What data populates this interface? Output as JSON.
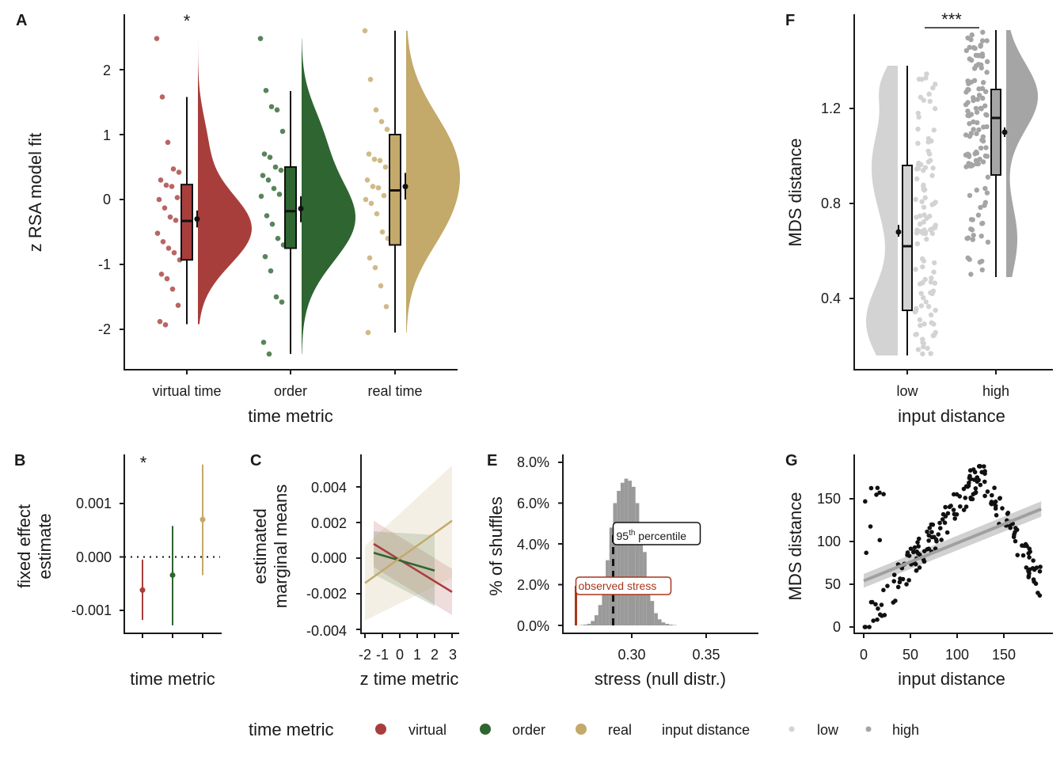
{
  "colors": {
    "virtual": "#a83e3c",
    "order": "#2e6530",
    "real": "#c3a96a",
    "low": "#d3d3d3",
    "high": "#a5a5a5",
    "null": "#9a9a9a",
    "observed": "#a8361c"
  },
  "panels": {
    "A": {
      "label": "A",
      "xlabel": "time metric",
      "ylabel": "z RSA model fit",
      "yticks": [
        "2",
        "1",
        "0",
        "-1",
        "-2"
      ],
      "sig": "*"
    },
    "B": {
      "label": "B",
      "xlabel": "time metric",
      "ylabel_line1": "fixed effect",
      "ylabel_line2": "estimate",
      "yticks": [
        "0.001",
        "0.000",
        "-0.001"
      ],
      "sig": "*"
    },
    "C": {
      "label": "C",
      "xlabel": "z time metric",
      "ylabel_line1": "estimated",
      "ylabel_line2": "marginal means",
      "yticks": [
        "0.004",
        "0.002",
        "0.000",
        "-0.002",
        "-0.004"
      ],
      "xticks": [
        "-2",
        "-1",
        "0",
        "1",
        "2",
        "3"
      ]
    },
    "E": {
      "label": "E",
      "xlabel": "stress (null distr.)",
      "ylabel": "% of shuffles",
      "yticks": [
        "8.0%",
        "6.0%",
        "4.0%",
        "2.0%",
        "0.0%"
      ],
      "xticks": [
        "0.30",
        "0.35"
      ],
      "pct_label_main": "95",
      "pct_label_sup": "th",
      "pct_label_rest": " percentile",
      "observed_label": "observed stress"
    },
    "F": {
      "label": "F",
      "xlabel": "input distance",
      "ylabel": "MDS distance",
      "yticks": [
        "1.2",
        "0.8",
        "0.4"
      ],
      "sig": "***"
    },
    "G": {
      "label": "G",
      "xlabel": "input distance",
      "ylabel": "MDS distance",
      "yticks": [
        "150",
        "100",
        "50",
        "0"
      ],
      "xticks": [
        "0",
        "50",
        "100",
        "150"
      ]
    }
  },
  "legend": {
    "title1": "time metric",
    "virtual": "virtual",
    "order": "order",
    "real": "real",
    "title2": "input distance",
    "low": "low",
    "high": "high"
  },
  "chart_data": [
    {
      "panel": "A",
      "type": "scatter",
      "subtype": "raincloud",
      "categories": [
        "virtual time",
        "order",
        "real time"
      ],
      "ylim": [
        -2.6,
        2.8
      ],
      "series": [
        {
          "name": "virtual time",
          "box": {
            "q1": -0.93,
            "median": -0.33,
            "q3": 0.23,
            "whisker_low": -1.92,
            "whisker_high": 1.58
          },
          "mean": -0.3,
          "ci": [
            -0.43,
            -0.17
          ],
          "range": [
            -1.92,
            2.48
          ],
          "points": [
            2.48,
            1.58,
            0.88,
            0.47,
            0.42,
            0.3,
            0.22,
            0.2,
            0.03,
            0.0,
            -0.13,
            -0.27,
            -0.32,
            -0.52,
            -0.65,
            -0.75,
            -0.82,
            -0.93,
            -1.15,
            -1.22,
            -1.38,
            -1.63,
            -1.88,
            -1.93
          ]
        },
        {
          "name": "order",
          "box": {
            "q1": -0.75,
            "median": -0.18,
            "q3": 0.5,
            "whisker_low": -2.38,
            "whisker_high": 1.67
          },
          "mean": -0.14,
          "ci": [
            -0.35,
            0.05
          ],
          "range": [
            -2.38,
            2.48
          ],
          "points": [
            2.48,
            1.68,
            1.43,
            1.38,
            1.05,
            0.7,
            0.65,
            0.5,
            0.45,
            0.37,
            0.3,
            0.17,
            0.08,
            0.05,
            -0.25,
            -0.38,
            -0.6,
            -0.7,
            -0.88,
            -1.1,
            -1.5,
            -1.58,
            -2.2,
            -2.38
          ]
        },
        {
          "name": "real time",
          "box": {
            "q1": -0.7,
            "median": 0.14,
            "q3": 1.0,
            "whisker_low": -2.05,
            "whisker_high": 2.6
          },
          "mean": 0.2,
          "ci": [
            0.0,
            0.41
          ],
          "range": [
            -2.05,
            2.6
          ],
          "points": [
            2.6,
            1.85,
            1.38,
            1.2,
            1.08,
            0.7,
            0.62,
            0.6,
            0.5,
            0.3,
            0.2,
            0.18,
            0.06,
            0.0,
            -0.06,
            -0.22,
            -0.5,
            -0.6,
            -0.9,
            -1.05,
            -1.33,
            -1.65,
            -2.05
          ]
        }
      ]
    },
    {
      "panel": "B",
      "type": "scatter",
      "categories": [
        "virtual",
        "order",
        "real"
      ],
      "ylim": [
        -0.00143,
        0.00183
      ],
      "series": [
        {
          "name": "virtual",
          "estimate": -0.00062,
          "ci": [
            -0.00118,
            -5e-05
          ]
        },
        {
          "name": "order",
          "estimate": -0.00034,
          "ci": [
            -0.00128,
            0.00058
          ]
        },
        {
          "name": "real",
          "estimate": 0.0007,
          "ci": [
            -0.00034,
            0.00173
          ]
        }
      ],
      "reference_line": 0
    },
    {
      "panel": "C",
      "type": "line",
      "xlim": [
        -2.35,
        3.1
      ],
      "ylim": [
        -0.0042,
        0.0053
      ],
      "series": [
        {
          "name": "virtual",
          "x": [
            -1.5,
            3
          ],
          "y": [
            0.0008,
            -0.0019
          ],
          "ci_low": [
            -0.0005,
            -0.0032
          ],
          "ci_high": [
            0.0021,
            -0.0006
          ]
        },
        {
          "name": "order",
          "x": [
            -1.5,
            2
          ],
          "y": [
            0.0003,
            -0.0007
          ],
          "ci_low": [
            -0.0009,
            -0.0027
          ],
          "ci_high": [
            0.0015,
            0.0013
          ]
        },
        {
          "name": "real",
          "x": [
            -2,
            3
          ],
          "y": [
            -0.0014,
            0.0021
          ],
          "ci_low": [
            -0.0035,
            -0.0011
          ],
          "ci_high": [
            0.0007,
            0.0052
          ]
        }
      ]
    },
    {
      "panel": "E",
      "type": "bar",
      "xlim": [
        0.256,
        0.382
      ],
      "ylim": [
        0,
        0.083
      ],
      "bin_width": 0.0025,
      "bins_start": 0.265,
      "values": [
        0.0002,
        0.0004,
        0.0008,
        0.0022,
        0.005,
        0.01,
        0.02,
        0.032,
        0.048,
        0.06,
        0.066,
        0.07,
        0.072,
        0.071,
        0.068,
        0.06,
        0.05,
        0.036,
        0.022,
        0.012,
        0.006,
        0.003,
        0.0015,
        0.0008,
        0.0004,
        0.0002
      ],
      "percentile_95": 0.2875,
      "observed_stress": 0.2625
    },
    {
      "panel": "F",
      "type": "scatter",
      "subtype": "raincloud",
      "categories": [
        "low",
        "high"
      ],
      "ylim": [
        0.07,
        1.57
      ],
      "series": [
        {
          "name": "low",
          "box": {
            "q1": 0.35,
            "median": 0.62,
            "q3": 0.96,
            "whisker_low": 0.16,
            "whisker_high": 1.38
          },
          "mean": 0.68,
          "ci": [
            0.66,
            0.71
          ],
          "range": [
            0.16,
            1.38
          ]
        },
        {
          "name": "high",
          "box": {
            "q1": 0.92,
            "median": 1.16,
            "q3": 1.28,
            "whisker_low": 0.49,
            "whisker_high": 1.53
          },
          "mean": 1.1,
          "ci": [
            1.08,
            1.12
          ],
          "range": [
            0.49,
            1.53
          ]
        }
      ]
    },
    {
      "panel": "G",
      "type": "scatter",
      "xlim": [
        -6,
        196
      ],
      "ylim": [
        -8,
        198
      ],
      "fit": {
        "x": [
          0,
          190
        ],
        "y": [
          54,
          138
        ]
      }
    }
  ]
}
